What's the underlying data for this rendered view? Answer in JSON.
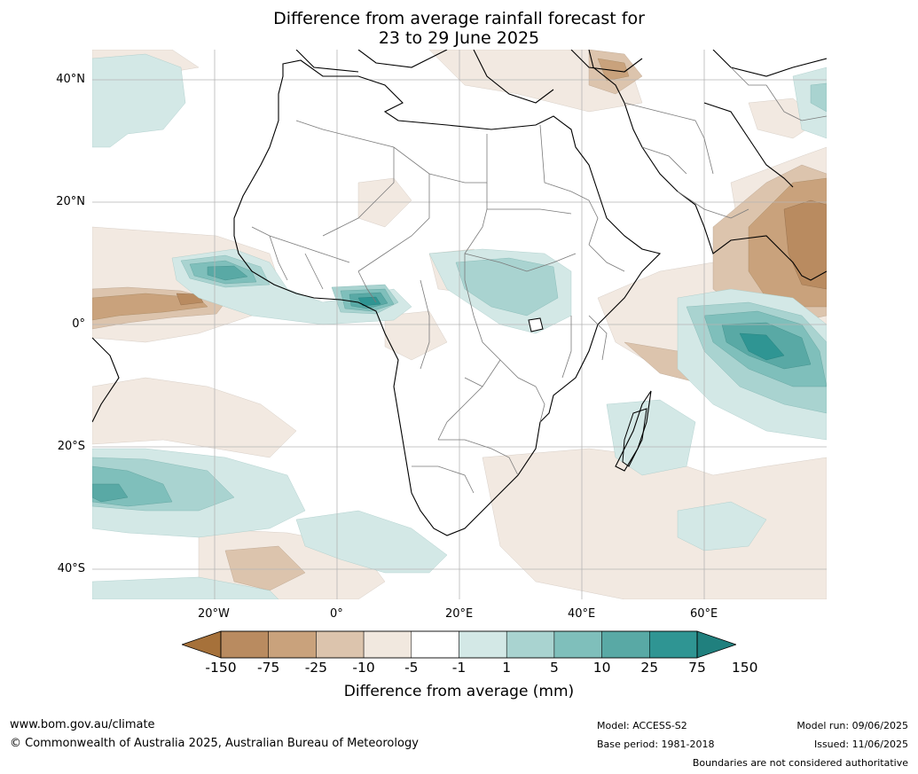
{
  "title": {
    "line1": "Difference from average rainfall forecast for",
    "line2": "23 to 29 June 2025"
  },
  "axes": {
    "lat_labels": [
      "40°N",
      "20°N",
      "0°",
      "20°S",
      "40°S"
    ],
    "lon_labels": [
      "20°W",
      "0°",
      "20°E",
      "40°E",
      "60°E"
    ]
  },
  "legend": {
    "ticks": [
      "-150",
      "-75",
      "-25",
      "-10",
      "-5",
      "-1",
      "1",
      "5",
      "10",
      "25",
      "75",
      "150"
    ],
    "colors": [
      "#a6713a",
      "#b98b60",
      "#c9a27c",
      "#dcc4ad",
      "#f1e8df",
      "#ffffff",
      "#d3e8e6",
      "#a9d3d0",
      "#7fbfbb",
      "#59a9a5",
      "#2f9593",
      "#20807e"
    ],
    "label": "Difference from average (mm)"
  },
  "footer": {
    "website": "www.bom.gov.au/climate",
    "copyright": "© Commonwealth of Australia 2025, Australian Bureau of Meteorology",
    "model": "Model: ACCESS-S2",
    "base_period": "Base period: 1981-2018",
    "model_run": "Model run: 09/06/2025",
    "issued": "Issued: 11/06/2025",
    "boundaries": "Boundaries are not considered authoritative"
  }
}
